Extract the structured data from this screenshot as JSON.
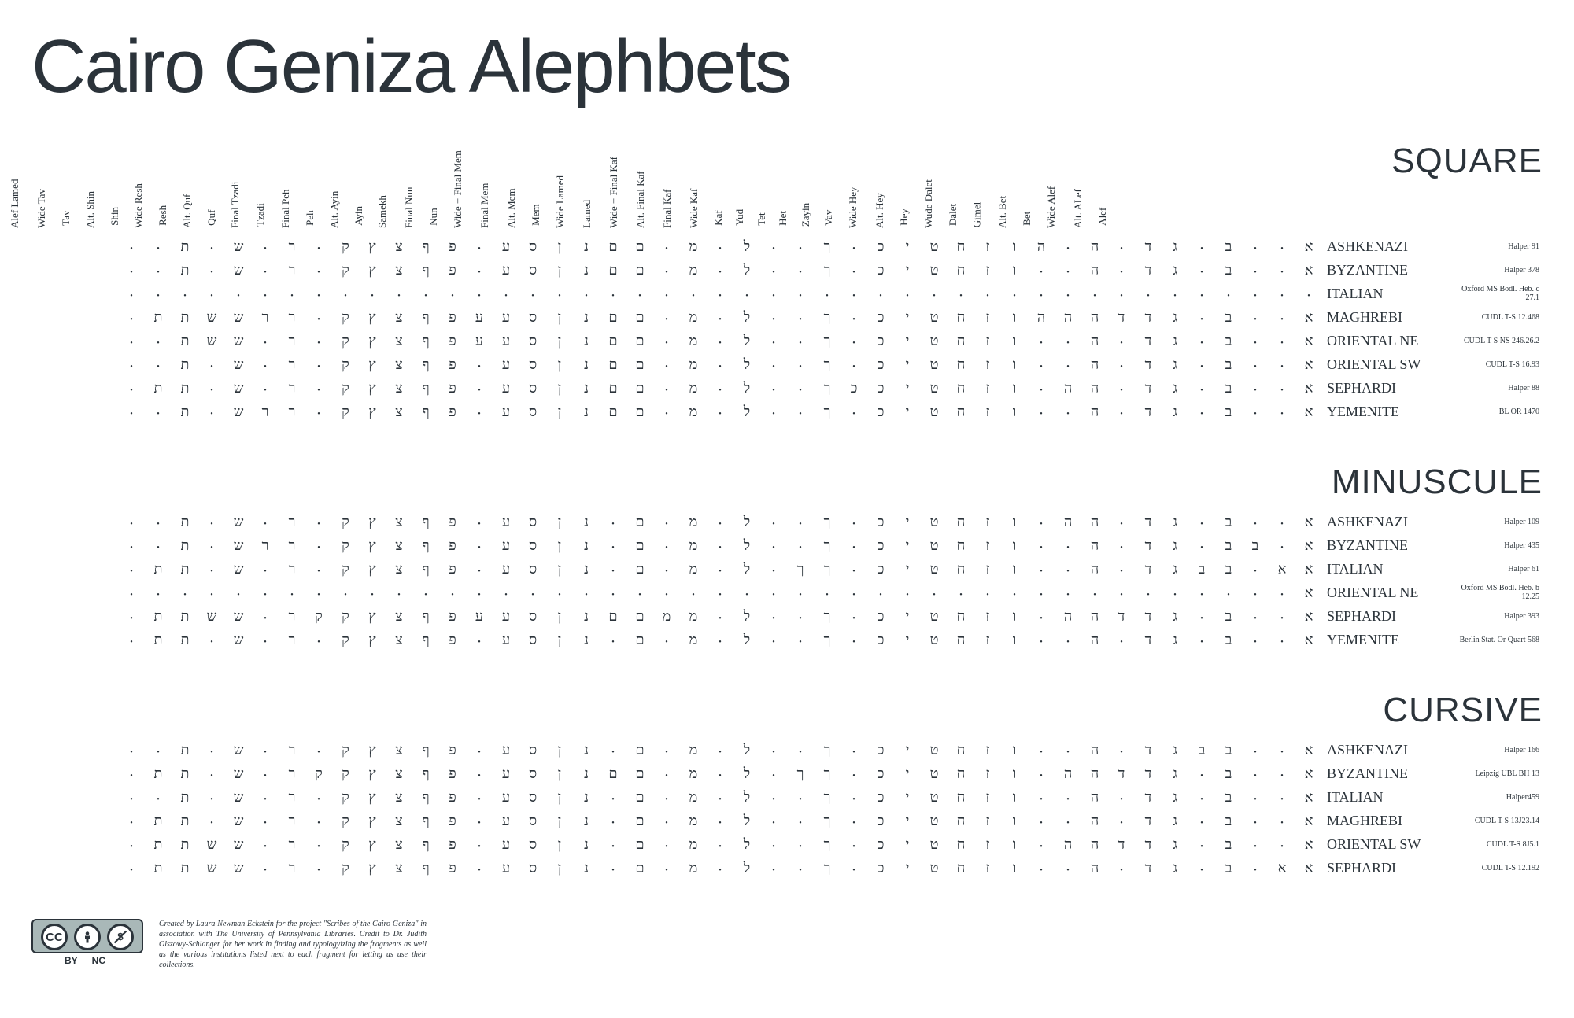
{
  "title": "Cairo Geniza Alephbets",
  "columns": [
    "Alef",
    "Alt. ALef",
    "Wide Alef",
    "Bet",
    "Alt. Bet",
    "Gimel",
    "Dalet",
    "Wude Dalet",
    "Hey",
    "Alt. Hey",
    "Wide Hey",
    "Vav",
    "Zayin",
    "Het",
    "Tet",
    "Yud",
    "Kaf",
    "Wide Kaf",
    "Final Kaf",
    "Alt. Final Kaf",
    "Wide + Final Kaf",
    "Lamed",
    "Wide Lamed",
    "Mem",
    "Alt. Mem",
    "Final Mem",
    "Wide + Final Mem",
    "Nun",
    "Final Nun",
    "Samekh",
    "Ayin",
    "Alt. Ayin",
    "Peh",
    "Final Peh",
    "Tzadi",
    "Final Tzadi",
    "Quf",
    "Alt. Quf",
    "Resh",
    "Wide Resh",
    "Shin",
    "Alt. Shin",
    "Tav",
    "Wide Tav",
    "Alef Lamed"
  ],
  "sections": [
    {
      "title": "SQUARE",
      "show_headers": true,
      "rows": [
        {
          "label": "ASHKENAZI",
          "source": "Halper 91",
          "glyphs": [
            "א",
            "•",
            "•",
            "ב",
            "•",
            "ג",
            "ד",
            "•",
            "ה",
            "•",
            "ה",
            "ו",
            "ז",
            "ח",
            "ט",
            "י",
            "כ",
            "•",
            "ך",
            "•",
            "•",
            "ל",
            "•",
            "מ",
            "•",
            "ם",
            "ם",
            "נ",
            "ן",
            "ס",
            "ע",
            "•",
            "פ",
            "ף",
            "צ",
            "ץ",
            "ק",
            "•",
            "ר",
            "•",
            "ש",
            "•",
            "ת",
            "•",
            "•"
          ]
        },
        {
          "label": "BYZANTINE",
          "source": "Halper 378",
          "glyphs": [
            "א",
            "•",
            "•",
            "ב",
            "•",
            "ג",
            "ד",
            "•",
            "ה",
            "•",
            "•",
            "ו",
            "ז",
            "ח",
            "ט",
            "י",
            "כ",
            "•",
            "ך",
            "•",
            "•",
            "ל",
            "•",
            "מ",
            "•",
            "ם",
            "ם",
            "נ",
            "ן",
            "ס",
            "ע",
            "•",
            "פ",
            "ף",
            "צ",
            "ץ",
            "ק",
            "•",
            "ר",
            "•",
            "ש",
            "•",
            "ת",
            "•",
            "•"
          ]
        },
        {
          "label": "ITALIAN",
          "source": "Oxford MS Bodl. Heb. c 27.1",
          "glyphs": [
            "•",
            "•",
            "•",
            "•",
            "•",
            "•",
            "•",
            "•",
            "•",
            "•",
            "•",
            "•",
            "•",
            "•",
            "•",
            "•",
            "•",
            "•",
            "•",
            "•",
            "•",
            "•",
            "•",
            "•",
            "•",
            "•",
            "•",
            "•",
            "•",
            "•",
            "•",
            "•",
            "•",
            "•",
            "•",
            "•",
            "•",
            "•",
            "•",
            "•",
            "•",
            "•",
            "•",
            "•",
            "•"
          ]
        },
        {
          "label": "MAGHREBI",
          "source": "CUDL T-S 12.468",
          "glyphs": [
            "א",
            "•",
            "•",
            "ב",
            "•",
            "ג",
            "ד",
            "ד",
            "ה",
            "ה",
            "ה",
            "ו",
            "ז",
            "ח",
            "ט",
            "י",
            "כ",
            "•",
            "ך",
            "•",
            "•",
            "ל",
            "•",
            "מ",
            "•",
            "ם",
            "ם",
            "נ",
            "ן",
            "ס",
            "ע",
            "ע",
            "פ",
            "ף",
            "צ",
            "ץ",
            "ק",
            "•",
            "ר",
            "ר",
            "ש",
            "ש",
            "ת",
            "ת",
            "•"
          ]
        },
        {
          "label": "ORIENTAL NE",
          "source": "CUDL T-S NS 246.26.2",
          "glyphs": [
            "א",
            "•",
            "•",
            "ב",
            "•",
            "ג",
            "ד",
            "•",
            "ה",
            "•",
            "•",
            "ו",
            "ז",
            "ח",
            "ט",
            "י",
            "כ",
            "•",
            "ך",
            "•",
            "•",
            "ל",
            "•",
            "מ",
            "•",
            "ם",
            "ם",
            "נ",
            "ן",
            "ס",
            "ע",
            "ע",
            "פ",
            "ף",
            "צ",
            "ץ",
            "ק",
            "•",
            "ר",
            "•",
            "ש",
            "ש",
            "ת",
            "•",
            "•"
          ]
        },
        {
          "label": "ORIENTAL SW",
          "source": "CUDL T-S 16.93",
          "glyphs": [
            "א",
            "•",
            "•",
            "ב",
            "•",
            "ג",
            "ד",
            "•",
            "ה",
            "•",
            "•",
            "ו",
            "ז",
            "ח",
            "ט",
            "י",
            "כ",
            "•",
            "ך",
            "•",
            "•",
            "ל",
            "•",
            "מ",
            "•",
            "ם",
            "ם",
            "נ",
            "ן",
            "ס",
            "ע",
            "•",
            "פ",
            "ף",
            "צ",
            "ץ",
            "ק",
            "•",
            "ר",
            "•",
            "ש",
            "•",
            "ת",
            "•",
            "•"
          ]
        },
        {
          "label": "SEPHARDI",
          "source": "Halper 88",
          "glyphs": [
            "א",
            "•",
            "•",
            "ב",
            "•",
            "ג",
            "ד",
            "•",
            "ה",
            "ה",
            "•",
            "ו",
            "ז",
            "ח",
            "ט",
            "י",
            "כ",
            "כ",
            "ך",
            "•",
            "•",
            "ל",
            "•",
            "מ",
            "•",
            "ם",
            "ם",
            "נ",
            "ן",
            "ס",
            "ע",
            "•",
            "פ",
            "ף",
            "צ",
            "ץ",
            "ק",
            "•",
            "ר",
            "•",
            "ש",
            "•",
            "ת",
            "ת",
            "•"
          ]
        },
        {
          "label": "YEMENITE",
          "source": "BL OR 1470",
          "glyphs": [
            "א",
            "•",
            "•",
            "ב",
            "•",
            "ג",
            "ד",
            "•",
            "ה",
            "•",
            "•",
            "ו",
            "ז",
            "ח",
            "ט",
            "י",
            "כ",
            "•",
            "ך",
            "•",
            "•",
            "ל",
            "•",
            "מ",
            "•",
            "ם",
            "ם",
            "נ",
            "ן",
            "ס",
            "ע",
            "•",
            "פ",
            "ף",
            "צ",
            "ץ",
            "ק",
            "•",
            "ר",
            "ר",
            "ש",
            "•",
            "ת",
            "•",
            "•"
          ]
        }
      ]
    },
    {
      "title": "MINUSCULE",
      "show_headers": false,
      "rows": [
        {
          "label": "ASHKENAZI",
          "source": "Halper 109",
          "glyphs": [
            "א",
            "•",
            "•",
            "ב",
            "•",
            "ג",
            "ד",
            "•",
            "ה",
            "ה",
            "•",
            "ו",
            "ז",
            "ח",
            "ט",
            "י",
            "כ",
            "•",
            "ך",
            "•",
            "•",
            "ל",
            "•",
            "מ",
            "•",
            "ם",
            "•",
            "נ",
            "ן",
            "ס",
            "ע",
            "•",
            "פ",
            "ף",
            "צ",
            "ץ",
            "ק",
            "•",
            "ר",
            "•",
            "ש",
            "•",
            "ת",
            "•",
            "•"
          ]
        },
        {
          "label": "BYZANTINE",
          "source": "Halper 435",
          "glyphs": [
            "א",
            "•",
            "ב",
            "ב",
            "•",
            "ג",
            "ד",
            "•",
            "ה",
            "•",
            "•",
            "ו",
            "ז",
            "ח",
            "ט",
            "י",
            "כ",
            "•",
            "ך",
            "•",
            "•",
            "ל",
            "•",
            "מ",
            "•",
            "ם",
            "•",
            "נ",
            "ן",
            "ס",
            "ע",
            "•",
            "פ",
            "ף",
            "צ",
            "ץ",
            "ק",
            "•",
            "ר",
            "ר",
            "ש",
            "•",
            "ת",
            "•",
            "•"
          ]
        },
        {
          "label": "ITALIAN",
          "source": "Halper 61",
          "glyphs": [
            "א",
            "א",
            "•",
            "ב",
            "ב",
            "ג",
            "ד",
            "•",
            "ה",
            "•",
            "•",
            "ו",
            "ז",
            "ח",
            "ט",
            "י",
            "כ",
            "•",
            "ך",
            "ך",
            "•",
            "ל",
            "•",
            "מ",
            "•",
            "ם",
            "•",
            "נ",
            "ן",
            "ס",
            "ע",
            "•",
            "פ",
            "ף",
            "צ",
            "ץ",
            "ק",
            "•",
            "ר",
            "•",
            "ש",
            "•",
            "ת",
            "ת",
            "•"
          ]
        },
        {
          "label": "ORIENTAL NE",
          "source": "Oxford MS Bodl. Heb. b 12.25",
          "glyphs": [
            "א",
            "•",
            "•",
            "•",
            "•",
            "•",
            "•",
            "•",
            "•",
            "•",
            "•",
            "•",
            "•",
            "•",
            "•",
            "•",
            "•",
            "•",
            "•",
            "•",
            "•",
            "•",
            "•",
            "•",
            "•",
            "•",
            "•",
            "•",
            "•",
            "•",
            "•",
            "•",
            "•",
            "•",
            "•",
            "•",
            "•",
            "•",
            "•",
            "•",
            "•",
            "•",
            "•",
            "•",
            "•"
          ]
        },
        {
          "label": "SEPHARDI",
          "source": "Halper 393",
          "glyphs": [
            "א",
            "•",
            "•",
            "ב",
            "•",
            "ג",
            "ד",
            "ד",
            "ה",
            "ה",
            "•",
            "ו",
            "ז",
            "ח",
            "ט",
            "י",
            "כ",
            "•",
            "ך",
            "•",
            "•",
            "ל",
            "•",
            "מ",
            "מ",
            "ם",
            "ם",
            "נ",
            "ן",
            "ס",
            "ע",
            "ע",
            "פ",
            "ף",
            "צ",
            "ץ",
            "ק",
            "ק",
            "ר",
            "•",
            "ש",
            "ש",
            "ת",
            "ת",
            "•"
          ]
        },
        {
          "label": "YEMENITE",
          "source": "Berlin Stat. Or Quart 568",
          "glyphs": [
            "א",
            "•",
            "•",
            "ב",
            "•",
            "ג",
            "ד",
            "•",
            "ה",
            "•",
            "•",
            "ו",
            "ז",
            "ח",
            "ט",
            "י",
            "כ",
            "•",
            "ך",
            "•",
            "•",
            "ל",
            "•",
            "מ",
            "•",
            "ם",
            "•",
            "נ",
            "ן",
            "ס",
            "ע",
            "•",
            "פ",
            "ף",
            "צ",
            "ץ",
            "ק",
            "•",
            "ר",
            "•",
            "ש",
            "•",
            "ת",
            "ת",
            "•"
          ]
        }
      ]
    },
    {
      "title": "CURSIVE",
      "show_headers": false,
      "rows": [
        {
          "label": "ASHKENAZI",
          "source": "Halper 166",
          "glyphs": [
            "א",
            "•",
            "•",
            "ב",
            "ב",
            "ג",
            "ד",
            "•",
            "ה",
            "•",
            "•",
            "ו",
            "ז",
            "ח",
            "ט",
            "י",
            "כ",
            "•",
            "ך",
            "•",
            "•",
            "ל",
            "•",
            "מ",
            "•",
            "ם",
            "•",
            "נ",
            "ן",
            "ס",
            "ע",
            "•",
            "פ",
            "ף",
            "צ",
            "ץ",
            "ק",
            "•",
            "ר",
            "•",
            "ש",
            "•",
            "ת",
            "•",
            "•"
          ]
        },
        {
          "label": "BYZANTINE",
          "source": "Leipzig UBL BH 13",
          "glyphs": [
            "א",
            "•",
            "•",
            "ב",
            "•",
            "ג",
            "ד",
            "ד",
            "ה",
            "ה",
            "•",
            "ו",
            "ז",
            "ח",
            "ט",
            "י",
            "כ",
            "•",
            "ך",
            "ך",
            "•",
            "ל",
            "•",
            "מ",
            "•",
            "ם",
            "ם",
            "נ",
            "ן",
            "ס",
            "ע",
            "•",
            "פ",
            "ף",
            "צ",
            "ץ",
            "ק",
            "ק",
            "ר",
            "•",
            "ש",
            "•",
            "ת",
            "ת",
            "•"
          ]
        },
        {
          "label": "ITALIAN",
          "source": "Halper459",
          "glyphs": [
            "א",
            "•",
            "•",
            "ב",
            "•",
            "ג",
            "ד",
            "•",
            "ה",
            "•",
            "•",
            "ו",
            "ז",
            "ח",
            "ט",
            "י",
            "כ",
            "•",
            "ך",
            "•",
            "•",
            "ל",
            "•",
            "מ",
            "•",
            "ם",
            "•",
            "נ",
            "ן",
            "ס",
            "ע",
            "•",
            "פ",
            "ף",
            "צ",
            "ץ",
            "ק",
            "•",
            "ר",
            "•",
            "ש",
            "•",
            "ת",
            "•",
            "•"
          ]
        },
        {
          "label": "MAGHREBI",
          "source": "CUDL T-S 13J23.14",
          "glyphs": [
            "א",
            "•",
            "•",
            "ב",
            "•",
            "ג",
            "ד",
            "•",
            "ה",
            "•",
            "•",
            "ו",
            "ז",
            "ח",
            "ט",
            "י",
            "כ",
            "•",
            "ך",
            "•",
            "•",
            "ל",
            "•",
            "מ",
            "•",
            "ם",
            "•",
            "נ",
            "ן",
            "ס",
            "ע",
            "•",
            "פ",
            "ף",
            "צ",
            "ץ",
            "ק",
            "•",
            "ר",
            "•",
            "ש",
            "•",
            "ת",
            "ת",
            "•"
          ]
        },
        {
          "label": "ORIENTAL SW",
          "source": "CUDL T-S 8J5.1",
          "glyphs": [
            "א",
            "•",
            "•",
            "ב",
            "•",
            "ג",
            "ד",
            "ד",
            "ה",
            "ה",
            "•",
            "ו",
            "ז",
            "ח",
            "ט",
            "י",
            "כ",
            "•",
            "ך",
            "•",
            "•",
            "ל",
            "•",
            "מ",
            "•",
            "ם",
            "•",
            "נ",
            "ן",
            "ס",
            "ע",
            "•",
            "פ",
            "ף",
            "צ",
            "ץ",
            "ק",
            "•",
            "ר",
            "•",
            "ש",
            "ש",
            "ת",
            "ת",
            "•"
          ]
        },
        {
          "label": "SEPHARDI",
          "source": "CUDL T-S 12.192",
          "glyphs": [
            "א",
            "א",
            "•",
            "ב",
            "•",
            "ג",
            "ד",
            "•",
            "ה",
            "•",
            "•",
            "ו",
            "ז",
            "ח",
            "ט",
            "י",
            "כ",
            "•",
            "ך",
            "•",
            "•",
            "ל",
            "•",
            "מ",
            "•",
            "ם",
            "•",
            "נ",
            "ן",
            "ס",
            "ע",
            "•",
            "פ",
            "ף",
            "צ",
            "ץ",
            "ק",
            "•",
            "ר",
            "•",
            "ש",
            "ש",
            "ת",
            "ת",
            "•"
          ]
        }
      ]
    }
  ],
  "credit": "Created by Laura Newman Eckstein for the project \"Scribes of the Cairo Geniza\" in association with The University of Pennsylvania Libraries. Credit to Dr. Judith Olszowy-Schlanger for her work in finding and typologyizing the fragments as well as the various institutions listed next to each fragment for letting us use their collections.",
  "cc": {
    "by": "BY",
    "nc": "NC"
  },
  "colors": {
    "text": "#2b333a",
    "bg": "#ffffff",
    "badge_bg": "#a9b8b8"
  }
}
